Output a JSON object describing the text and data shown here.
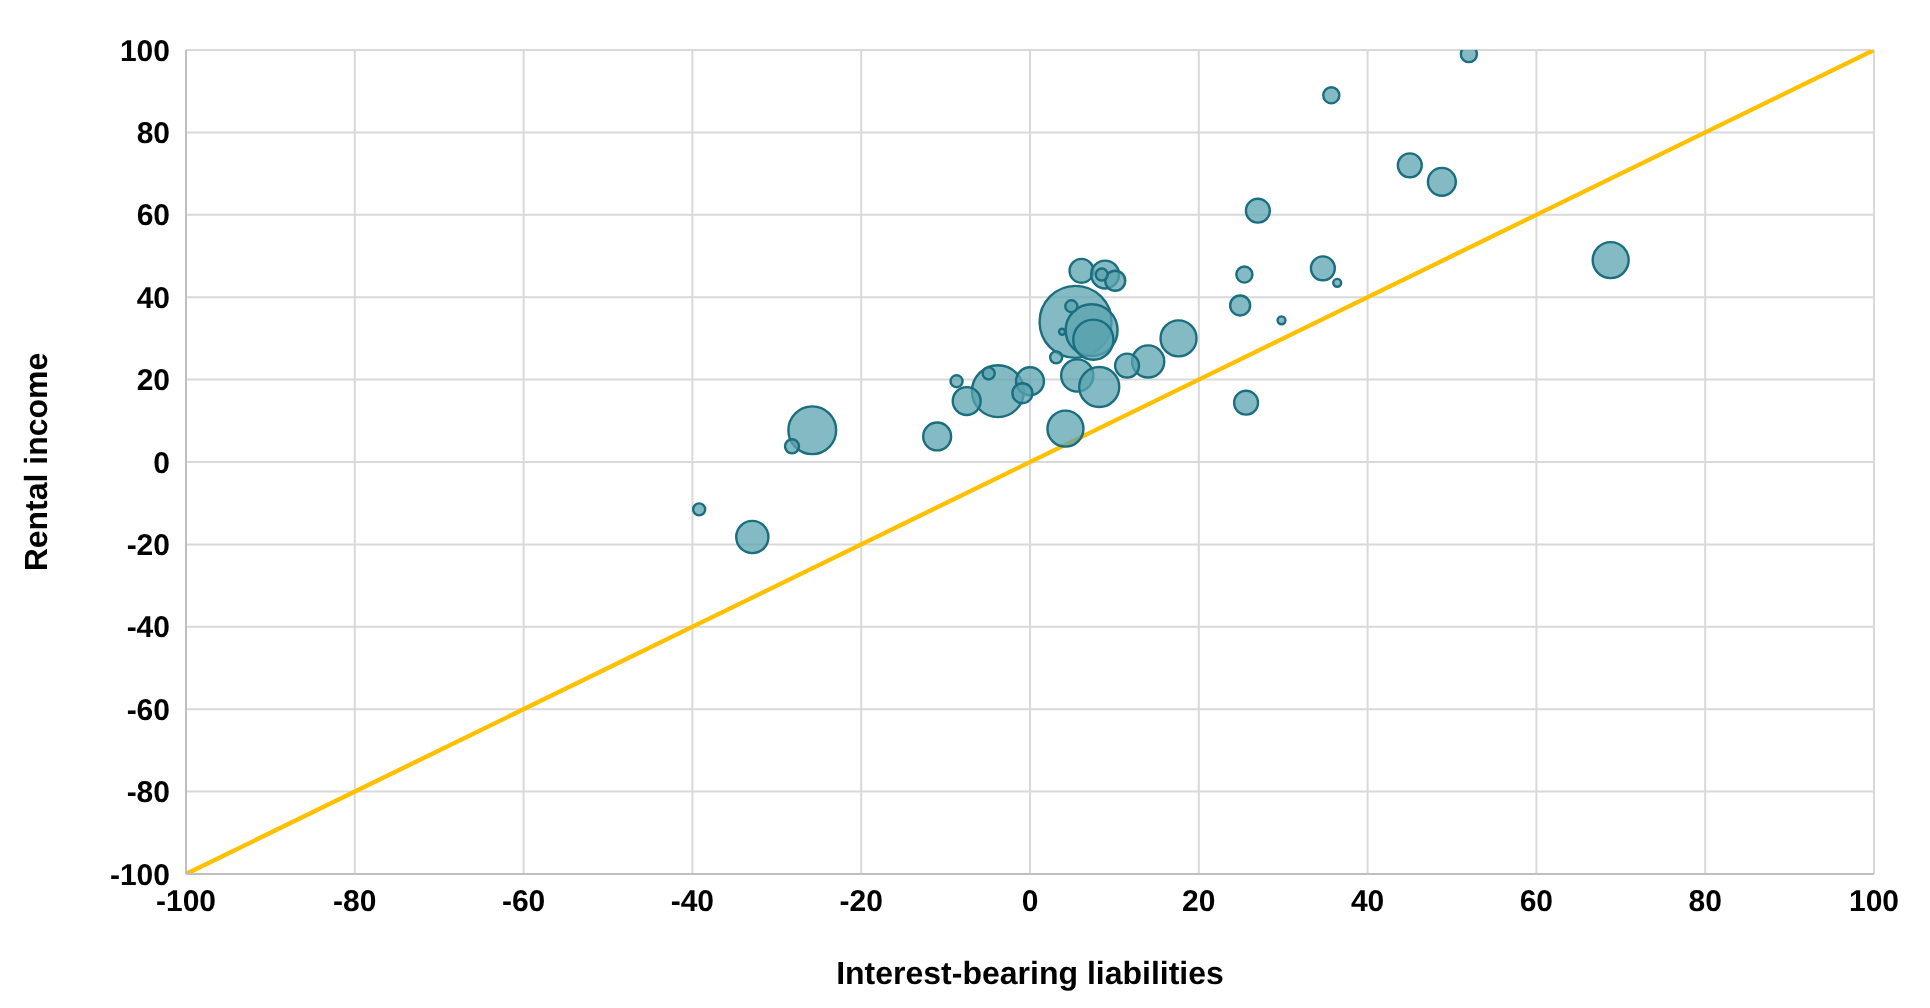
{
  "chart_data": {
    "type": "bubble",
    "xlabel": "Interest-bearing liabilities",
    "ylabel": "Rental income",
    "xlim": [
      -100,
      100
    ],
    "ylim": [
      -100,
      100
    ],
    "xticks": [
      -100,
      -80,
      -60,
      -40,
      -20,
      0,
      20,
      40,
      60,
      80,
      100
    ],
    "yticks": [
      -100,
      -80,
      -60,
      -40,
      -20,
      0,
      20,
      40,
      60,
      80,
      100
    ],
    "grid": true,
    "legend": false,
    "series": [
      {
        "type": "bubble",
        "color": "#5ba3b0",
        "x": [
          52,
          35.7,
          45,
          48.8,
          27,
          68.8,
          34.7,
          36.4,
          25.4,
          24.9,
          29.8,
          25.6,
          17.6,
          14,
          11.5,
          6.1,
          8.9,
          10.1,
          8.5,
          5.4,
          7.3,
          7.5,
          4.9,
          3.8,
          3.1,
          5.6,
          8.2,
          -3.8,
          0,
          -0.9,
          -4.9,
          -8.7,
          -7.5,
          -11,
          4.2,
          -25.8,
          -28.2,
          -39.2,
          -32.9
        ],
        "values": [
          99,
          89,
          72,
          68,
          61,
          49,
          47,
          43.5,
          45.5,
          38,
          34.4,
          14.4,
          30,
          24.4,
          23.4,
          46.4,
          45.5,
          44,
          45.5,
          34,
          32,
          29.7,
          37.8,
          31.6,
          25.4,
          21,
          18.2,
          17.2,
          19.6,
          16.7,
          21.5,
          19.6,
          14.8,
          6.2,
          8.1,
          7.7,
          3.8,
          -11.5,
          -18.2
        ],
        "sizes": [
          0.05,
          0.05,
          0.11,
          0.15,
          0.11,
          0.25,
          0.11,
          0.012,
          0.05,
          0.077,
          0.012,
          0.11,
          0.25,
          0.2,
          0.11,
          0.11,
          0.15,
          0.077,
          0.028,
          1,
          0.52,
          0.31,
          0.028,
          0.007,
          0.028,
          0.2,
          0.31,
          0.52,
          0.15,
          0.077,
          0.028,
          0.028,
          0.15,
          0.15,
          0.25,
          0.44,
          0.038,
          0.028,
          0.2
        ]
      },
      {
        "type": "line",
        "color": "#ffc000",
        "x": [
          -100,
          100
        ],
        "values": [
          -100,
          100
        ]
      }
    ]
  }
}
